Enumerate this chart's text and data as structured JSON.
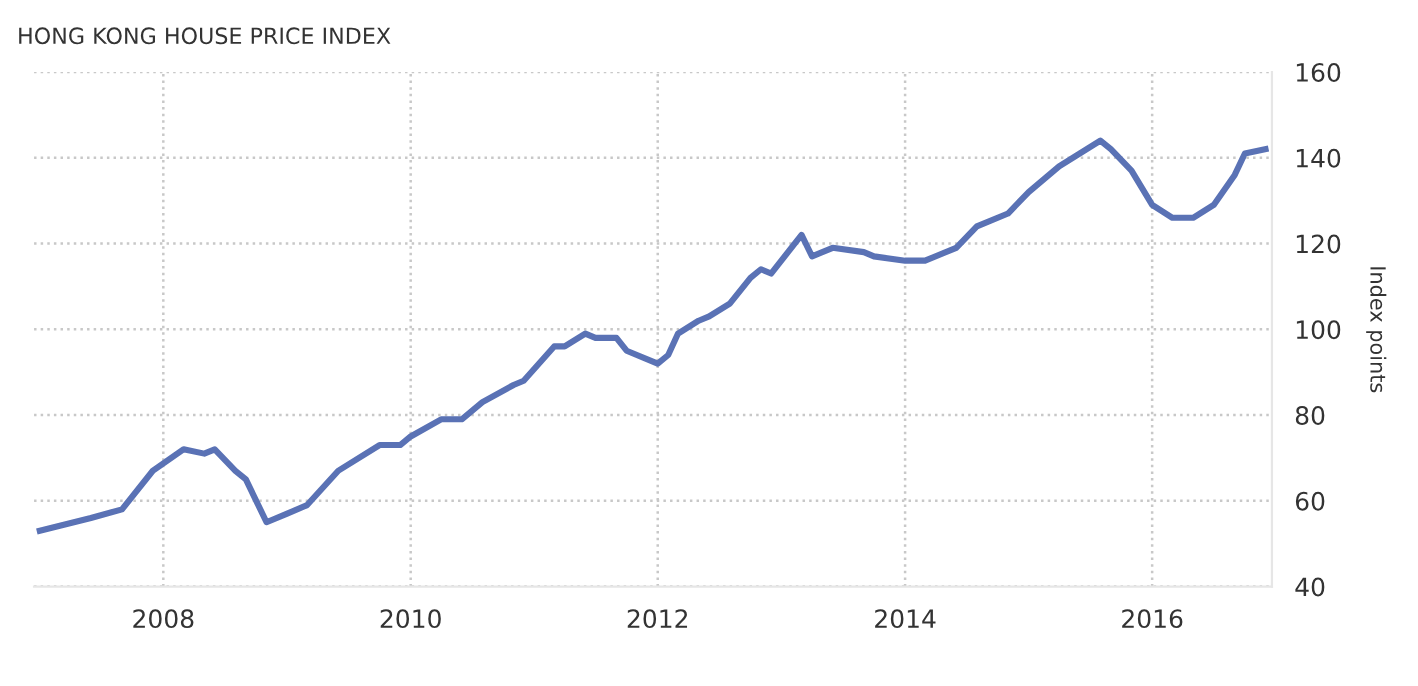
{
  "chart_data": {
    "type": "line",
    "title": "HONG KONG HOUSE PRICE INDEX",
    "ylabel": "Index points",
    "x": [
      "2007-01",
      "2007-06",
      "2007-09",
      "2007-12",
      "2008-03",
      "2008-05",
      "2008-06",
      "2008-08",
      "2008-09",
      "2008-11",
      "2009-01",
      "2009-03",
      "2009-06",
      "2009-10",
      "2009-12",
      "2010-01",
      "2010-04",
      "2010-06",
      "2010-08",
      "2010-11",
      "2010-12",
      "2011-03",
      "2011-04",
      "2011-06",
      "2011-07",
      "2011-09",
      "2011-10",
      "2012-01",
      "2012-02",
      "2012-03",
      "2012-05",
      "2012-06",
      "2012-08",
      "2012-10",
      "2012-11",
      "2012-12",
      "2013-03",
      "2013-04",
      "2013-06",
      "2013-09",
      "2013-10",
      "2014-01",
      "2014-03",
      "2014-06",
      "2014-08",
      "2014-11",
      "2015-01",
      "2015-04",
      "2015-08",
      "2015-09",
      "2015-11",
      "2016-01",
      "2016-03",
      "2016-05",
      "2016-07",
      "2016-09",
      "2016-10",
      "2016-12"
    ],
    "series": [
      {
        "color": "#5a72b5",
        "values": [
          53,
          56,
          58,
          67,
          72,
          71,
          72,
          67,
          65,
          55,
          57,
          59,
          67,
          73,
          73,
          75,
          79,
          79,
          83,
          87,
          88,
          96,
          96,
          99,
          98,
          98,
          95,
          92,
          94,
          99,
          102,
          103,
          106,
          112,
          114,
          113,
          122,
          117,
          119,
          118,
          117,
          116,
          116,
          119,
          124,
          127,
          132,
          138,
          144,
          142,
          137,
          129,
          126,
          126,
          129,
          136,
          141,
          142
        ]
      }
    ],
    "xlim": [
      "2006-12-15",
      "2016-12-20"
    ],
    "xticks": [
      {
        "value": "2008",
        "label": "2008"
      },
      {
        "value": "2010",
        "label": "2010"
      },
      {
        "value": "2012",
        "label": "2012"
      },
      {
        "value": "2014",
        "label": "2014"
      },
      {
        "value": "2016",
        "label": "2016"
      }
    ],
    "ylim": [
      40,
      160
    ],
    "yticks": [
      40,
      60,
      80,
      100,
      120,
      140,
      160
    ],
    "grid": true,
    "marker": "none",
    "line_style": "solid"
  }
}
